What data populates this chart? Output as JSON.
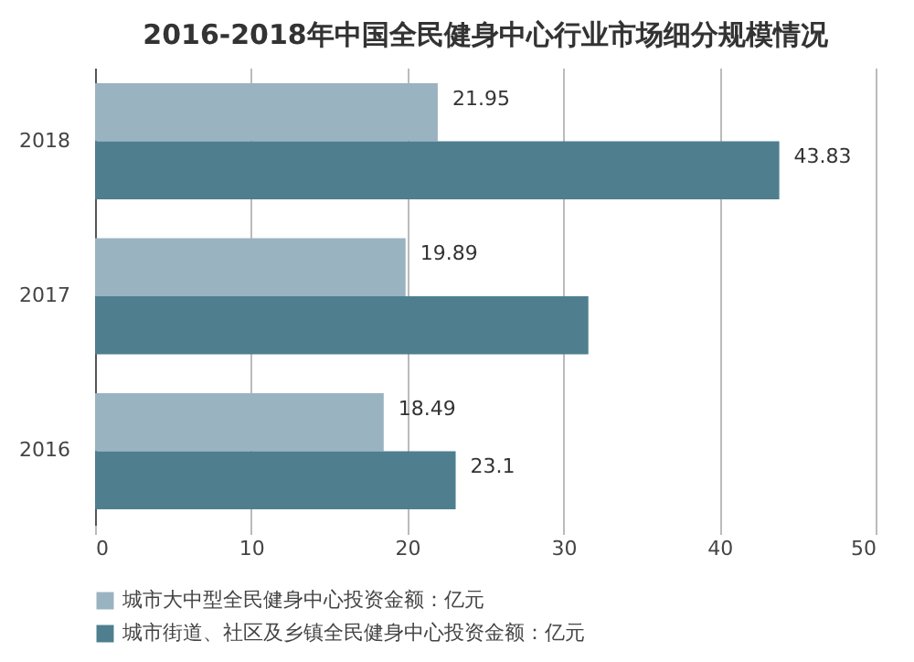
{
  "chart_data": {
    "type": "bar",
    "orientation": "horizontal",
    "title": "2016-2018年中国全民健身中心行业市场细分规模情况",
    "categories": [
      "2018",
      "2017",
      "2016"
    ],
    "series": [
      {
        "name": "城市大中型全民健身中心投资金额：亿元",
        "color": "#9ab3c0",
        "values": [
          21.95,
          19.89,
          18.49
        ],
        "value_labels": [
          "21.95",
          "19.89",
          "18.49"
        ]
      },
      {
        "name": "城市街道、社区及乡镇全民健身中心投资金额：亿元",
        "color": "#4f7f8f",
        "values": [
          43.83,
          31.6,
          23.1
        ],
        "value_labels": [
          "43.83",
          null,
          "23.1"
        ]
      }
    ],
    "xlim": [
      0,
      50
    ],
    "xticks": [
      0,
      10,
      20,
      30,
      40,
      50
    ],
    "grid": "x",
    "legend": "bottom"
  }
}
